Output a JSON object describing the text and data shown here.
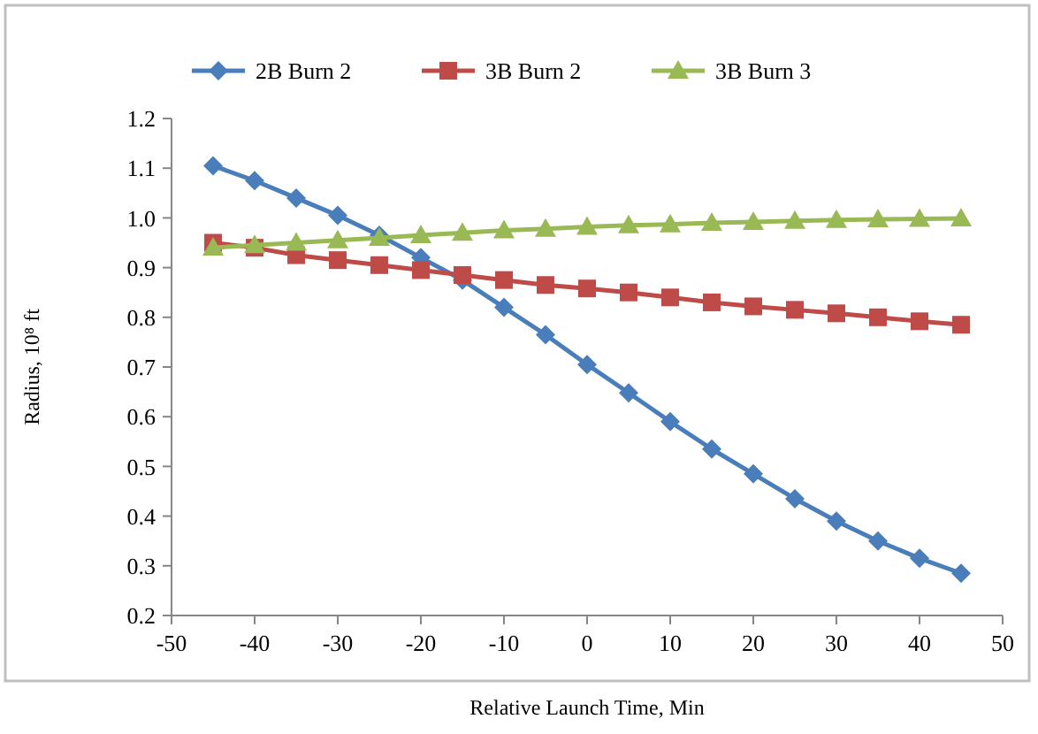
{
  "chart_data": {
    "type": "line",
    "xlabel": "Relative Launch Time, Min",
    "ylabel": "Radius, 10⁸ ft",
    "x": [
      -45,
      -40,
      -35,
      -30,
      -25,
      -20,
      -15,
      -10,
      -5,
      0,
      5,
      10,
      15,
      20,
      25,
      30,
      35,
      40,
      45
    ],
    "series": [
      {
        "name": "2B Burn 2",
        "color": "#4a7ebb",
        "marker": "diamond",
        "values": [
          1.105,
          1.075,
          1.04,
          1.005,
          0.965,
          0.92,
          0.875,
          0.82,
          0.765,
          0.705,
          0.648,
          0.59,
          0.535,
          0.485,
          0.435,
          0.39,
          0.35,
          0.315,
          0.285
        ]
      },
      {
        "name": "3B Burn 2",
        "color": "#be4b48",
        "marker": "square",
        "values": [
          0.95,
          0.94,
          0.925,
          0.915,
          0.905,
          0.895,
          0.885,
          0.875,
          0.865,
          0.858,
          0.85,
          0.84,
          0.83,
          0.822,
          0.815,
          0.808,
          0.8,
          0.792,
          0.785
        ]
      },
      {
        "name": "3B Burn 3",
        "color": "#98b954",
        "marker": "triangle",
        "values": [
          0.94,
          0.945,
          0.95,
          0.955,
          0.96,
          0.965,
          0.97,
          0.975,
          0.978,
          0.982,
          0.985,
          0.987,
          0.99,
          0.992,
          0.994,
          0.996,
          0.997,
          0.998,
          0.999
        ]
      }
    ],
    "xlim": [
      -50,
      50
    ],
    "xticks": [
      -50,
      -40,
      -30,
      -20,
      -10,
      0,
      10,
      20,
      30,
      40,
      50
    ],
    "ylim": [
      0.2,
      1.2
    ],
    "yticks": [
      {
        "value": 0.2,
        "label": "0.2"
      },
      {
        "value": 0.3,
        "label": "0.3"
      },
      {
        "value": 0.4,
        "label": "0.4"
      },
      {
        "value": 0.5,
        "label": "0.5"
      },
      {
        "value": 0.6,
        "label": "0.6"
      },
      {
        "value": 0.7,
        "label": "0.7"
      },
      {
        "value": 0.8,
        "label": "0.8"
      },
      {
        "value": 0.9,
        "label": "0.9"
      },
      {
        "value": 1.0,
        "label": "1.0"
      },
      {
        "value": 1.1,
        "label": "1.1"
      },
      {
        "value": 1.2,
        "label": "1.2"
      }
    ],
    "grid": false,
    "legend": "top",
    "line_style": "solid"
  }
}
